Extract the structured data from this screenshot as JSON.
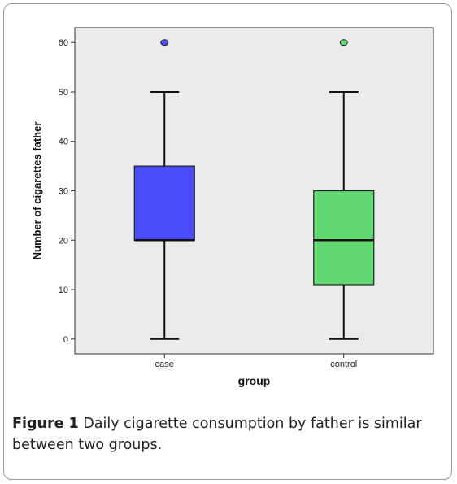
{
  "chart_data": {
    "type": "boxplot",
    "xlabel": "group",
    "ylabel": "Number of cigarettes father",
    "ylim": [
      -3,
      63
    ],
    "yticks": [
      0,
      10,
      20,
      30,
      40,
      50,
      60
    ],
    "grid": false,
    "groups": [
      {
        "name": "case",
        "min": 0,
        "q1": 20,
        "median": 20,
        "q3": 35,
        "max": 50,
        "outliers": [
          60
        ],
        "color": "#4b4dfa"
      },
      {
        "name": "control",
        "min": 0,
        "q1": 11,
        "median": 20,
        "q3": 30,
        "max": 50,
        "outliers": [
          60
        ],
        "color": "#62d872"
      }
    ]
  },
  "caption": {
    "label": "Figure 1",
    "text": "Daily cigarette consumption by father is similar between two groups."
  },
  "colors": {
    "plot_background": "#ebebeb",
    "axis": "#333333"
  }
}
